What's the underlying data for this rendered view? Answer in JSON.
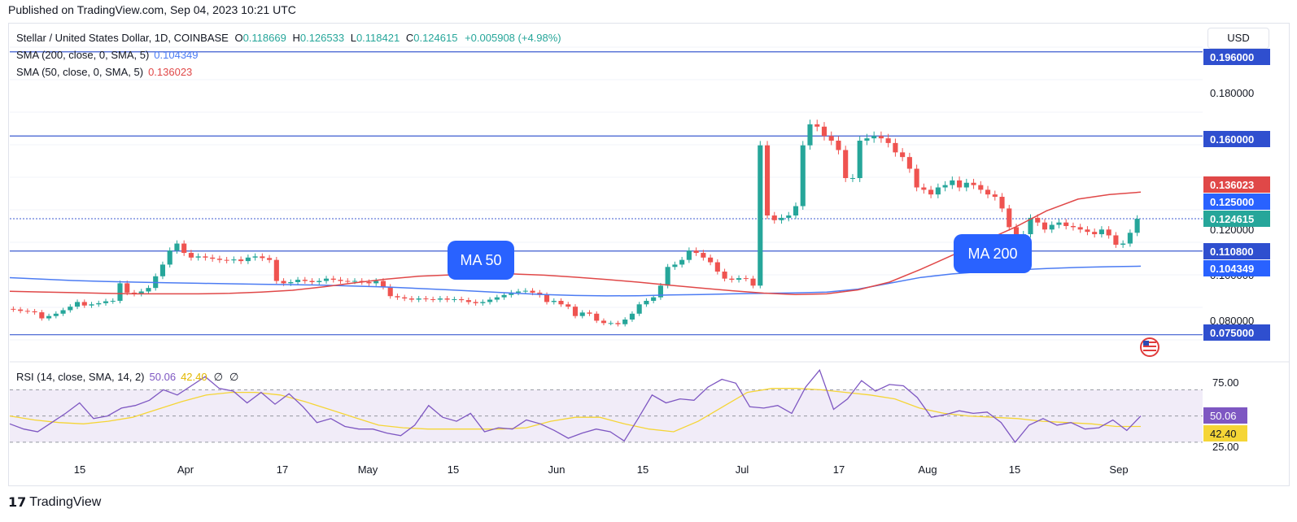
{
  "published": "Published on TradingView.com, Sep 04, 2023 10:21 UTC",
  "brand": "TradingView",
  "currency_button": "USD",
  "legend": {
    "symbol": "Stellar / United States Dollar, 1D, COINBASE",
    "o_label": "O",
    "o_val": "0.118669",
    "h_label": "H",
    "h_val": "0.126533",
    "l_label": "L",
    "l_val": "0.118421",
    "c_label": "C",
    "c_val": "0.124615",
    "change": "+0.005908 (+4.98%)",
    "sma200_label": "SMA (200, close, 0, SMA, 5)",
    "sma200_val": "0.104349",
    "sma50_label": "SMA (50, close, 0, SMA, 5)",
    "sma50_val": "0.136023",
    "rsi_label": "RSI (14, close, SMA, 14, 2)",
    "rsi_val": "50.06",
    "rsi_sma_val": "42.40",
    "rsi_extra1": "∅",
    "rsi_extra2": "∅"
  },
  "colors": {
    "up": "#26a69a",
    "down": "#ef5350",
    "ma50": "#e04848",
    "ma200": "#4c7cf3",
    "hline": "#3c5bd1",
    "rsi": "#7e57c2",
    "rsi_ma": "#f5d536",
    "label_blue": "#2962ff",
    "text": "#131722"
  },
  "chart_data": {
    "type": "candlestick",
    "title": "Stellar / United States Dollar, 1D, COINBASE",
    "ylim": [
      0.0728,
      0.198
    ],
    "price_ticks": [
      "0.180000",
      "0.120000",
      "0.100000",
      "0.080000"
    ],
    "x_ticks": [
      "15",
      "Apr",
      "17",
      "May",
      "15",
      "Jun",
      "15",
      "Jul",
      "17",
      "Aug",
      "15",
      "Sep"
    ],
    "horizontal_lines": [
      "0.196000",
      "0.160000",
      "0.110800",
      "0.075000"
    ],
    "price_labels": [
      {
        "text": "0.196000",
        "kind": "line"
      },
      {
        "text": "0.160000",
        "kind": "line"
      },
      {
        "text": "0.136023",
        "kind": "ma50"
      },
      {
        "text": "0.125000",
        "kind": "label"
      },
      {
        "text": "0.124615",
        "kind": "last"
      },
      {
        "text": "0.110800",
        "kind": "line"
      },
      {
        "text": "0.104349",
        "kind": "ma200"
      },
      {
        "text": "0.075000",
        "kind": "line"
      }
    ],
    "annotations": [
      "MA 50",
      "MA 200"
    ],
    "closes": [
      0.0858,
      0.0852,
      0.085,
      0.0846,
      0.082,
      0.083,
      0.084,
      0.0855,
      0.087,
      0.089,
      0.0875,
      0.088,
      0.0885,
      0.0893,
      0.0895,
      0.097,
      0.093,
      0.0925,
      0.0935,
      0.095,
      0.1,
      0.105,
      0.111,
      0.114,
      0.11,
      0.108,
      0.1085,
      0.108,
      0.1075,
      0.107,
      0.1068,
      0.1072,
      0.1065,
      0.108,
      0.1085,
      0.1078,
      0.107,
      0.098,
      0.097,
      0.0975,
      0.0985,
      0.098,
      0.0975,
      0.098,
      0.099,
      0.0985,
      0.098,
      0.0978,
      0.098,
      0.0975,
      0.097,
      0.098,
      0.0955,
      0.0915,
      0.091,
      0.0905,
      0.09,
      0.0905,
      0.0902,
      0.09,
      0.0905,
      0.09,
      0.0902,
      0.0898,
      0.089,
      0.0885,
      0.089,
      0.09,
      0.091,
      0.092,
      0.093,
      0.0935,
      0.0938,
      0.093,
      0.092,
      0.089,
      0.0895,
      0.088,
      0.087,
      0.083,
      0.0845,
      0.084,
      0.081,
      0.08,
      0.08,
      0.0795,
      0.0815,
      0.084,
      0.088,
      0.0895,
      0.091,
      0.096,
      0.104,
      0.105,
      0.107,
      0.111,
      0.11,
      0.108,
      0.106,
      0.102,
      0.099,
      0.0985,
      0.0992,
      0.099,
      0.096,
      0.156,
      0.126,
      0.124,
      0.125,
      0.126,
      0.13,
      0.156,
      0.165,
      0.164,
      0.16,
      0.158,
      0.154,
      0.142,
      0.142,
      0.158,
      0.159,
      0.16,
      0.159,
      0.157,
      0.153,
      0.151,
      0.146,
      0.138,
      0.137,
      0.135,
      0.138,
      0.139,
      0.141,
      0.138,
      0.14,
      0.139,
      0.137,
      0.135,
      0.134,
      0.129,
      0.121,
      0.113,
      0.118,
      0.125,
      0.123,
      0.12,
      0.122,
      0.123,
      0.1215,
      0.121,
      0.12,
      0.119,
      0.118,
      0.12,
      0.1175,
      0.1135,
      0.114,
      0.1186,
      0.1246
    ],
    "ma50": [
      0.0936,
      0.0933,
      0.093,
      0.0927,
      0.0925,
      0.0925,
      0.0925,
      0.0927,
      0.0932,
      0.094,
      0.0955,
      0.0972,
      0.0988,
      0.1,
      0.1006,
      0.101,
      0.101,
      0.1005,
      0.0996,
      0.0986,
      0.0975,
      0.0962,
      0.095,
      0.0938,
      0.0928,
      0.0922,
      0.0925,
      0.0942,
      0.0975,
      0.103,
      0.109,
      0.115,
      0.121,
      0.128,
      0.133,
      0.135,
      0.136
    ],
    "ma200": [
      0.0994,
      0.0988,
      0.0982,
      0.0978,
      0.0975,
      0.0972,
      0.097,
      0.0968,
      0.0966,
      0.0964,
      0.0962,
      0.0958,
      0.0954,
      0.0948,
      0.0942,
      0.0935,
      0.0928,
      0.0922,
      0.0918,
      0.0916,
      0.0917,
      0.092,
      0.0922,
      0.0925,
      0.0927,
      0.0929,
      0.0932,
      0.0945,
      0.097,
      0.0995,
      0.101,
      0.102,
      0.1027,
      0.1033,
      0.1038,
      0.1041,
      0.1043
    ],
    "rsi": {
      "ticks": [
        "75.00",
        "25.00"
      ],
      "levels": [
        70,
        50,
        30
      ],
      "ylim": [
        20,
        82
      ],
      "rsi": [
        44,
        40,
        38,
        45,
        52,
        60,
        48,
        50,
        56,
        58,
        62,
        70,
        66,
        73,
        80,
        71,
        69,
        60,
        68,
        59,
        67,
        57,
        45,
        48,
        42,
        40,
        40,
        37,
        35,
        43,
        58,
        49,
        46,
        52,
        38,
        41,
        40,
        47,
        44,
        39,
        33,
        37,
        40,
        38,
        31,
        48,
        66,
        60,
        63,
        62,
        72,
        78,
        75,
        57,
        56,
        58,
        52,
        72,
        85,
        55,
        63,
        77,
        69,
        74,
        73,
        64,
        49,
        51,
        54,
        52,
        53,
        45,
        30,
        43,
        48,
        43,
        45,
        40,
        41,
        47,
        39,
        50
      ],
      "rsi_ma": [
        50,
        47,
        45,
        44,
        46,
        49,
        55,
        61,
        66,
        68,
        68,
        66,
        61,
        55,
        49,
        43,
        41,
        40,
        40,
        40,
        40,
        41,
        46,
        49,
        49,
        44,
        40,
        38,
        46,
        57,
        68,
        71,
        71,
        70,
        68,
        66,
        63,
        56,
        52,
        50,
        49,
        48,
        46,
        45,
        44,
        42,
        42
      ]
    }
  }
}
